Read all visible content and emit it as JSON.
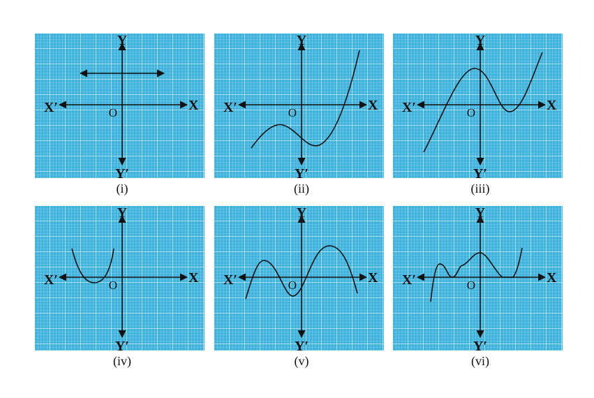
{
  "axes": {
    "x": "X",
    "x_prime": "X′",
    "y": "Y",
    "y_prime": "Y′",
    "origin": "O"
  },
  "panels": [
    {
      "caption": "(i)"
    },
    {
      "caption": "(ii)"
    },
    {
      "caption": "(iii)"
    },
    {
      "caption": "(iv)"
    },
    {
      "caption": "(v)"
    },
    {
      "caption": "(vi)"
    }
  ]
}
